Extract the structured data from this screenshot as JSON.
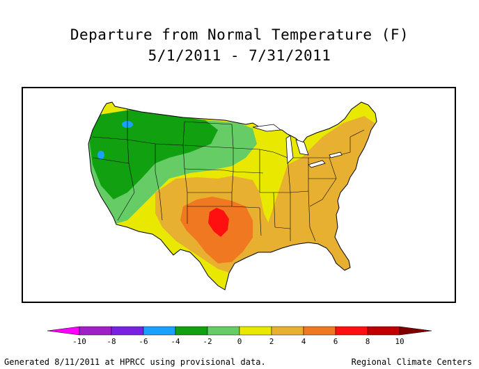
{
  "title": {
    "line1": "Departure from Normal Temperature (F)",
    "line2": "5/1/2011 - 7/31/2011"
  },
  "legend": {
    "tick_labels": [
      "-10",
      "-8",
      "-6",
      "-4",
      "-2",
      "0",
      "2",
      "4",
      "6",
      "8",
      "10"
    ],
    "bins": [
      {
        "color": "#ff00ff"
      },
      {
        "color": "#a020c8"
      },
      {
        "color": "#7a20e0"
      },
      {
        "color": "#1aa0ff"
      },
      {
        "color": "#10a010"
      },
      {
        "color": "#66cc66"
      },
      {
        "color": "#e8e800"
      },
      {
        "color": "#e8b030"
      },
      {
        "color": "#f07820"
      },
      {
        "color": "#ff1010"
      },
      {
        "color": "#c00000"
      },
      {
        "color": "#800000"
      }
    ]
  },
  "map": {
    "region": "Contiguous United States",
    "regions": [
      {
        "area": "Pacific Northwest and Northern Rockies",
        "departure_class": "-4 to -2",
        "color": "#10a010"
      },
      {
        "area": "Northern Plains and California",
        "departure_class": "-2 to 0",
        "color": "#66cc66"
      },
      {
        "area": "Upper Midwest and Great Lakes",
        "departure_class": "0 to 2",
        "color": "#e8e800"
      },
      {
        "area": "Northeast, Southeast and Ohio Valley",
        "departure_class": "2 to 4",
        "color": "#e8b030"
      },
      {
        "area": "Southern Plains and Texas",
        "departure_class": "4 to 6",
        "color": "#f07820"
      },
      {
        "area": "Western Oklahoma / Texas Panhandle",
        "departure_class": "6 to 8",
        "color": "#ff1010"
      }
    ]
  },
  "footer": {
    "left": "Generated 8/11/2011 at HPRCC using provisional data.",
    "right": "Regional Climate Centers"
  }
}
